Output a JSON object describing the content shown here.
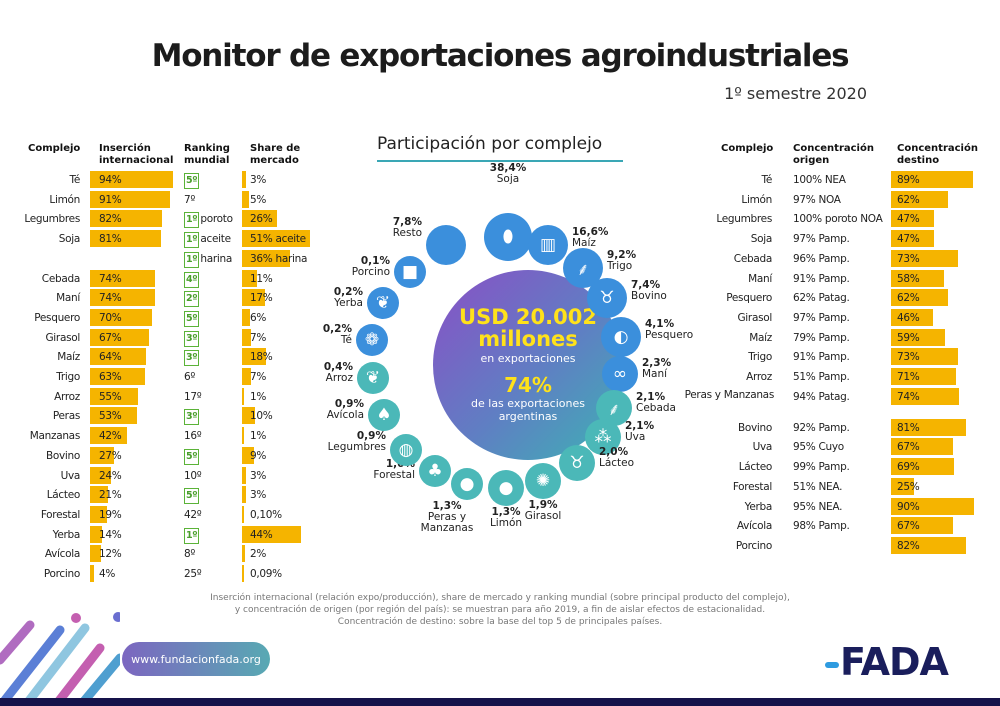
{
  "header": {
    "title": "Monitor de exportaciones agroindustriales",
    "subtitle": "1º semestre 2020"
  },
  "colors": {
    "bar": "#f5b400",
    "rank_box": "#5bb338",
    "circle_blue": "#3b8fdc",
    "circle_teal": "#4bb8b8",
    "navy": "#1a1e5c"
  },
  "chart_data": [
    {
      "type": "table",
      "columns": [
        "Complejo",
        "Inserción internacional",
        "Ranking mundial",
        "Share de mercado"
      ],
      "rows": [
        {
          "complejo": "Té",
          "insercion": 94,
          "insercion_label": "94%",
          "rank": "5º",
          "rank_note": "",
          "rank_boxed": true,
          "share": 3,
          "share_label": "3%"
        },
        {
          "complejo": "Limón",
          "insercion": 91,
          "insercion_label": "91%",
          "rank": "7º",
          "rank_note": "",
          "rank_boxed": false,
          "share": 5,
          "share_label": "5%"
        },
        {
          "complejo": "Legumbres",
          "insercion": 82,
          "insercion_label": "82%",
          "rank": "1º",
          "rank_note": "poroto",
          "rank_boxed": true,
          "share": 26,
          "share_label": "26%"
        },
        {
          "complejo": "Soja",
          "insercion": 81,
          "insercion_label": "81%",
          "rank": "1º",
          "rank_note": "aceite",
          "rank_boxed": true,
          "share": 51,
          "share_label": "51% aceite"
        },
        {
          "complejo": "",
          "insercion": null,
          "insercion_label": "",
          "rank": "1º",
          "rank_note": "harina",
          "rank_boxed": true,
          "share": 36,
          "share_label": "36% harina"
        },
        {
          "complejo": "Cebada",
          "insercion": 74,
          "insercion_label": "74%",
          "rank": "4º",
          "rank_note": "",
          "rank_boxed": true,
          "share": 11,
          "share_label": "11%"
        },
        {
          "complejo": "Maní",
          "insercion": 74,
          "insercion_label": "74%",
          "rank": "2º",
          "rank_note": "",
          "rank_boxed": true,
          "share": 17,
          "share_label": "17%"
        },
        {
          "complejo": "Pesquero",
          "insercion": 70,
          "insercion_label": "70%",
          "rank": "5º",
          "rank_note": "",
          "rank_boxed": true,
          "share": 6,
          "share_label": "6%"
        },
        {
          "complejo": "Girasol",
          "insercion": 67,
          "insercion_label": "67%",
          "rank": "3º",
          "rank_note": "",
          "rank_boxed": true,
          "share": 7,
          "share_label": "7%"
        },
        {
          "complejo": "Maíz",
          "insercion": 64,
          "insercion_label": "64%",
          "rank": "3º",
          "rank_note": "",
          "rank_boxed": true,
          "share": 18,
          "share_label": "18%"
        },
        {
          "complejo": "Trigo",
          "insercion": 63,
          "insercion_label": "63%",
          "rank": "6º",
          "rank_note": "",
          "rank_boxed": false,
          "share": 7,
          "share_label": "7%"
        },
        {
          "complejo": "Arroz",
          "insercion": 55,
          "insercion_label": "55%",
          "rank": "17º",
          "rank_note": "",
          "rank_boxed": false,
          "share": 1,
          "share_label": "1%"
        },
        {
          "complejo": "Peras",
          "insercion": 53,
          "insercion_label": "53%",
          "rank": "3º",
          "rank_note": "",
          "rank_boxed": true,
          "share": 10,
          "share_label": "10%"
        },
        {
          "complejo": "Manzanas",
          "insercion": 42,
          "insercion_label": "42%",
          "rank": "16º",
          "rank_note": "",
          "rank_boxed": false,
          "share": 1,
          "share_label": "1%"
        },
        {
          "complejo": "Bovino",
          "insercion": 27,
          "insercion_label": "27%",
          "rank": "5º",
          "rank_note": "",
          "rank_boxed": true,
          "share": 9,
          "share_label": "9%"
        },
        {
          "complejo": "Uva",
          "insercion": 24,
          "insercion_label": "24%",
          "rank": "10º",
          "rank_note": "",
          "rank_boxed": false,
          "share": 3,
          "share_label": "3%"
        },
        {
          "complejo": "Lácteo",
          "insercion": 21,
          "insercion_label": "21%",
          "rank": "5º",
          "rank_note": "",
          "rank_boxed": true,
          "share": 3,
          "share_label": "3%"
        },
        {
          "complejo": "Forestal",
          "insercion": 19,
          "insercion_label": "19%",
          "rank": "42º",
          "rank_note": "",
          "rank_boxed": false,
          "share": 0.1,
          "share_label": "0,10%"
        },
        {
          "complejo": "Yerba",
          "insercion": 14,
          "insercion_label": "14%",
          "rank": "1º",
          "rank_note": "",
          "rank_boxed": true,
          "share": 44,
          "share_label": "44%"
        },
        {
          "complejo": "Avícola",
          "insercion": 12,
          "insercion_label": "12%",
          "rank": "8º",
          "rank_note": "",
          "rank_boxed": false,
          "share": 2,
          "share_label": "2%"
        },
        {
          "complejo": "Porcino",
          "insercion": 4,
          "insercion_label": "4%",
          "rank": "25º",
          "rank_note": "",
          "rank_boxed": false,
          "share": 0.09,
          "share_label": "0,09%"
        }
      ]
    },
    {
      "type": "pie",
      "title": "Participación por complejo",
      "center": {
        "amount": "USD 20.002",
        "unit": "millones",
        "caption": "en exportaciones",
        "share": "74%",
        "share_caption_1": "de las exportaciones",
        "share_caption_2": "argentinas"
      },
      "slices": [
        {
          "name": "Soja",
          "label": "38,4%",
          "value": 38.4,
          "icon": "soybean-icon"
        },
        {
          "name": "Maíz",
          "label": "16,6%",
          "value": 16.6,
          "icon": "corn-icon"
        },
        {
          "name": "Trigo",
          "label": "9,2%",
          "value": 9.2,
          "icon": "wheat-icon"
        },
        {
          "name": "Bovino",
          "label": "7,4%",
          "value": 7.4,
          "icon": "cow-icon"
        },
        {
          "name": "Pesquero",
          "label": "4,1%",
          "value": 4.1,
          "icon": "fish-icon"
        },
        {
          "name": "Maní",
          "label": "2,3%",
          "value": 2.3,
          "icon": "peanut-icon"
        },
        {
          "name": "Cebada",
          "label": "2,1%",
          "value": 2.1,
          "icon": "barley-icon"
        },
        {
          "name": "Uva",
          "label": "2,1%",
          "value": 2.1,
          "icon": "grape-icon"
        },
        {
          "name": "Lácteo",
          "label": "2,0%",
          "value": 2.0,
          "icon": "dairy-cow-icon"
        },
        {
          "name": "Girasol",
          "label": "1,9%",
          "value": 1.9,
          "icon": "sunflower-icon"
        },
        {
          "name": "Limón",
          "label": "1,3%",
          "value": 1.3,
          "icon": "lemon-icon"
        },
        {
          "name": "Peras y Manzanas",
          "label": "1,3%",
          "value": 1.3,
          "icon": "apple-icon"
        },
        {
          "name": "Forestal",
          "label": "1,0%",
          "value": 1.0,
          "icon": "trees-icon"
        },
        {
          "name": "Legumbres",
          "label": "0,9%",
          "value": 0.9,
          "icon": "bean-icon"
        },
        {
          "name": "Avícola",
          "label": "0,9%",
          "value": 0.9,
          "icon": "chicken-icon"
        },
        {
          "name": "Arroz",
          "label": "0,4%",
          "value": 0.4,
          "icon": "rice-icon"
        },
        {
          "name": "Té",
          "label": "0,2%",
          "value": 0.2,
          "icon": "tea-leaf-icon"
        },
        {
          "name": "Yerba",
          "label": "0,2%",
          "value": 0.2,
          "icon": "yerba-leaf-icon"
        },
        {
          "name": "Porcino",
          "label": "0,1%",
          "value": 0.1,
          "icon": "pig-icon"
        },
        {
          "name": "Resto",
          "label": "7,8%",
          "value": 7.8,
          "icon": ""
        }
      ]
    },
    {
      "type": "table",
      "columns": [
        "Complejo",
        "Concentración origen",
        "Concentración destino"
      ],
      "rows": [
        {
          "complejo": "Té",
          "origen": "100% NEA",
          "destino": 89,
          "destino_label": "89%"
        },
        {
          "complejo": "Limón",
          "origen": "97% NOA",
          "destino": 62,
          "destino_label": "62%"
        },
        {
          "complejo": "Legumbres",
          "origen": "100% poroto NOA",
          "destino": 47,
          "destino_label": "47%"
        },
        {
          "complejo": "Soja",
          "origen": "97% Pamp.",
          "destino": 47,
          "destino_label": "47%"
        },
        {
          "complejo": "Cebada",
          "origen": "96% Pamp.",
          "destino": 73,
          "destino_label": "73%"
        },
        {
          "complejo": "Maní",
          "origen": "91% Pamp.",
          "destino": 58,
          "destino_label": "58%"
        },
        {
          "complejo": "Pesquero",
          "origen": "62% Patag.",
          "destino": 62,
          "destino_label": "62%"
        },
        {
          "complejo": "Girasol",
          "origen": "97% Pamp.",
          "destino": 46,
          "destino_label": "46%"
        },
        {
          "complejo": "Maíz",
          "origen": "79% Pamp.",
          "destino": 59,
          "destino_label": "59%"
        },
        {
          "complejo": "Trigo",
          "origen": "91% Pamp.",
          "destino": 73,
          "destino_label": "73%"
        },
        {
          "complejo": "Arroz",
          "origen": "51% Pamp.",
          "destino": 71,
          "destino_label": "71%"
        },
        {
          "complejo": "Peras y Manzanas",
          "origen": "94% Patag.",
          "destino": 74,
          "destino_label": "74%"
        },
        {
          "complejo": "Bovino",
          "origen": "92% Pamp.",
          "destino": 81,
          "destino_label": "81%"
        },
        {
          "complejo": "Uva",
          "origen": "95% Cuyo",
          "destino": 67,
          "destino_label": "67%"
        },
        {
          "complejo": "Lácteo",
          "origen": "99% Pamp.",
          "destino": 69,
          "destino_label": "69%"
        },
        {
          "complejo": "Forestal",
          "origen": "51% NEA.",
          "destino": 25,
          "destino_label": "25%"
        },
        {
          "complejo": "Yerba",
          "origen": "95% NEA.",
          "destino": 90,
          "destino_label": "90%"
        },
        {
          "complejo": "Avícola",
          "origen": "98% Pamp.",
          "destino": 67,
          "destino_label": "67%"
        },
        {
          "complejo": "Porcino",
          "origen": "",
          "destino": 82,
          "destino_label": "82%"
        }
      ]
    }
  ],
  "footer": {
    "note_1": "Inserción internacional (relación expo/producción), share de mercado y ranking mundial (sobre principal producto del complejo),",
    "note_2": "y concentración de origen (por región del país): se muestran para año 2019, a fin de aislar efectos de estacionalidad.",
    "note_3": "Concentración de destino: sobre la base del top 5 de principales países.",
    "website": "www.fundacionfada.org",
    "logo": "FADA"
  }
}
